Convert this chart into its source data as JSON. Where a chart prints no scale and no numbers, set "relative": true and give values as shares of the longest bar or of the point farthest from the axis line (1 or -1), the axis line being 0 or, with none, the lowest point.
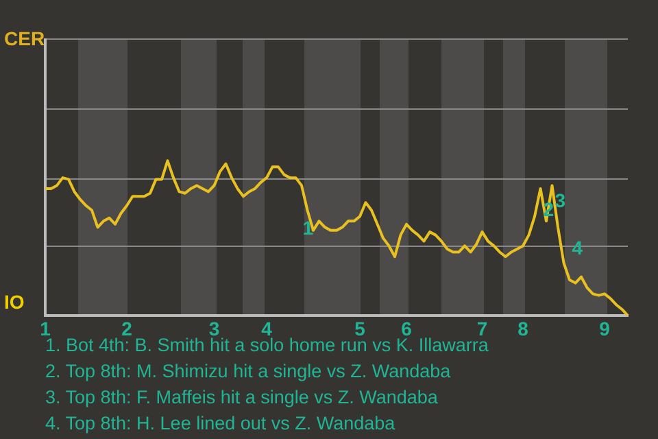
{
  "chart_data": {
    "type": "line",
    "relative": true,
    "categories": [
      "1",
      null,
      null,
      null,
      null,
      null,
      null,
      null,
      null,
      null,
      null,
      null,
      null,
      null,
      "2",
      null,
      null,
      null,
      null,
      null,
      null,
      null,
      null,
      null,
      null,
      null,
      null,
      null,
      null,
      "3",
      null,
      null,
      null,
      null,
      null,
      null,
      null,
      null,
      "4",
      null,
      null,
      null,
      null,
      null,
      null,
      null,
      null,
      null,
      null,
      null,
      null,
      null,
      null,
      null,
      "5",
      null,
      null,
      null,
      null,
      null,
      null,
      null,
      "6",
      null,
      null,
      null,
      null,
      null,
      null,
      null,
      null,
      null,
      null,
      null,
      null,
      "7",
      null,
      null,
      null,
      null,
      null,
      null,
      "8",
      null,
      null,
      null,
      null,
      null,
      null,
      null,
      null,
      null,
      null,
      null,
      null,
      null,
      "9",
      null,
      null,
      null,
      null
    ],
    "series": [
      {
        "color": "#e8c020",
        "values": [
          0.82,
          0.82,
          0.84,
          0.89,
          0.88,
          0.8,
          0.75,
          0.71,
          0.68,
          0.57,
          0.61,
          0.63,
          0.59,
          0.66,
          0.71,
          0.77,
          0.77,
          0.77,
          0.79,
          0.88,
          0.88,
          1,
          0.89,
          0.8,
          0.79,
          0.82,
          0.84,
          0.82,
          0.8,
          0.84,
          0.93,
          0.98,
          0.89,
          0.82,
          0.77,
          0.8,
          0.82,
          0.86,
          0.89,
          0.96,
          0.96,
          0.91,
          0.89,
          0.89,
          0.84,
          0.68,
          0.55,
          0.61,
          0.57,
          0.55,
          0.55,
          0.57,
          0.61,
          0.61,
          0.64,
          0.73,
          0.68,
          0.59,
          0.5,
          0.45,
          0.38,
          0.52,
          0.59,
          0.55,
          0.52,
          0.48,
          0.54,
          0.52,
          0.48,
          0.43,
          0.41,
          0.41,
          0.45,
          0.41,
          0.46,
          0.54,
          0.48,
          0.45,
          0.41,
          0.38,
          0.41,
          0.43,
          0.45,
          0.52,
          0.64,
          0.82,
          0.61,
          0.84,
          0.57,
          0.34,
          0.23,
          0.21,
          0.25,
          0.18,
          0.14,
          0.13,
          0.14,
          0.11,
          0.07,
          0.04,
          0
        ]
      }
    ],
    "ref_lines": [
      {
        "axis": "y",
        "value": 0.45,
        "color": "#888888"
      },
      {
        "axis": "y",
        "value": 0.89,
        "color": "#888888"
      },
      {
        "axis": "y",
        "value": 1.34,
        "color": "#888888"
      },
      {
        "axis": "y",
        "value": 1.79,
        "color": "#888888"
      }
    ],
    "legend": false,
    "marker": "none",
    "line_style": "solid",
    "annotations": [
      "CER",
      "IO",
      "1",
      "2",
      "3",
      "4",
      "1. Bot 4th: B. Smith hit a solo home run vs K. Illawarra",
      "2. Top 8th: M. Shimizu hit a single vs Z. Wandaba",
      "3. Top 8th: F. Maffeis hit a single vs Z. Wandaba",
      "4. Top 8th: H. Lee lined out vs Z. Wandaba"
    ]
  }
}
